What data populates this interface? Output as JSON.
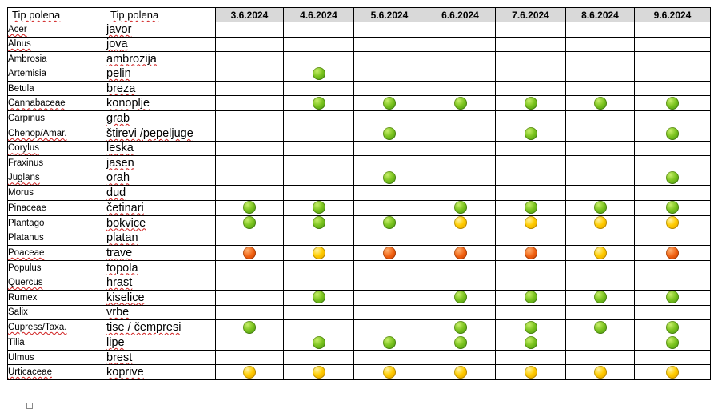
{
  "table": {
    "header": {
      "latin": "Tip polena",
      "local": "Tip polena",
      "dates": [
        "3.6.2024",
        "4.6.2024",
        "5.6.2024",
        "6.6.2024",
        "7.6.2024",
        "8.6.2024",
        "9.6.2024"
      ]
    },
    "rows": [
      {
        "latin": "Acer",
        "local": "javor",
        "levels": [
          "",
          "",
          "",
          "",
          "",
          "",
          ""
        ]
      },
      {
        "latin": "Alnus",
        "local": "jova",
        "levels": [
          "",
          "",
          "",
          "",
          "",
          "",
          ""
        ]
      },
      {
        "latin": "Ambrosia",
        "local": "ambrozija",
        "levels": [
          "",
          "",
          "",
          "",
          "",
          "",
          ""
        ]
      },
      {
        "latin": "Artemisia",
        "local": "pelin",
        "levels": [
          "",
          "green",
          "",
          "",
          "",
          "",
          ""
        ]
      },
      {
        "latin": "Betula",
        "local": "breza",
        "levels": [
          "",
          "",
          "",
          "",
          "",
          "",
          ""
        ]
      },
      {
        "latin": "Cannabaceae",
        "local": "konoplje",
        "levels": [
          "",
          "green",
          "green",
          "green",
          "green",
          "green",
          "green"
        ]
      },
      {
        "latin": "Carpinus",
        "local": "grab",
        "levels": [
          "",
          "",
          "",
          "",
          "",
          "",
          ""
        ]
      },
      {
        "latin": "Chenop/Amar.",
        "local": "štirevi /pepeljuge",
        "levels": [
          "",
          "",
          "green",
          "",
          "green",
          "",
          "green"
        ]
      },
      {
        "latin": "Corylus",
        "local": "leska",
        "levels": [
          "",
          "",
          "",
          "",
          "",
          "",
          ""
        ]
      },
      {
        "latin": "Fraxinus",
        "local": "jasen",
        "levels": [
          "",
          "",
          "",
          "",
          "",
          "",
          ""
        ]
      },
      {
        "latin": "Juglans",
        "local": "orah",
        "levels": [
          "",
          "",
          "green",
          "",
          "",
          "",
          "green"
        ]
      },
      {
        "latin": "Morus",
        "local": "dud",
        "levels": [
          "",
          "",
          "",
          "",
          "",
          "",
          ""
        ]
      },
      {
        "latin": "Pinaceae",
        "local": "četinari",
        "levels": [
          "green",
          "green",
          "",
          "green",
          "green",
          "green",
          "green"
        ]
      },
      {
        "latin": "Plantago",
        "local": "bokvice",
        "levels": [
          "green",
          "green",
          "green",
          "yellow",
          "yellow",
          "yellow",
          "yellow"
        ]
      },
      {
        "latin": "Platanus",
        "local": "platan",
        "levels": [
          "",
          "",
          "",
          "",
          "",
          "",
          ""
        ]
      },
      {
        "latin": "Poaceae",
        "local": "trave",
        "levels": [
          "orange",
          "yellow",
          "orange",
          "orange",
          "orange",
          "yellow",
          "orange"
        ]
      },
      {
        "latin": "Populus",
        "local": "topola",
        "levels": [
          "",
          "",
          "",
          "",
          "",
          "",
          ""
        ]
      },
      {
        "latin": "Quercus",
        "local": "hrast",
        "levels": [
          "",
          "",
          "",
          "",
          "",
          "",
          ""
        ]
      },
      {
        "latin": "Rumex",
        "local": "kiselice",
        "levels": [
          "",
          "green",
          "",
          "green",
          "green",
          "green",
          "green"
        ]
      },
      {
        "latin": "Salix",
        "local": "vrbe",
        "levels": [
          "",
          "",
          "",
          "",
          "",
          "",
          ""
        ]
      },
      {
        "latin": "Cupress/Taxa.",
        "local": "tise / čempresi",
        "levels": [
          "green",
          "",
          "",
          "green",
          "green",
          "green",
          "green"
        ]
      },
      {
        "latin": "Tilia",
        "local": "lipe",
        "levels": [
          "",
          "green",
          "green",
          "green",
          "green",
          "",
          "green"
        ]
      },
      {
        "latin": "Ulmus",
        "local": "brest",
        "levels": [
          "",
          "",
          "",
          "",
          "",
          "",
          ""
        ]
      },
      {
        "latin": "Urticaceae",
        "local": "koprive",
        "levels": [
          "yellow",
          "yellow",
          "yellow",
          "yellow",
          "yellow",
          "yellow",
          "yellow"
        ]
      }
    ]
  },
  "colors": {
    "green": "#7cc41f",
    "yellow": "#ffcc00",
    "orange": "#f06010",
    "header_bg": "#d9d9d9"
  }
}
